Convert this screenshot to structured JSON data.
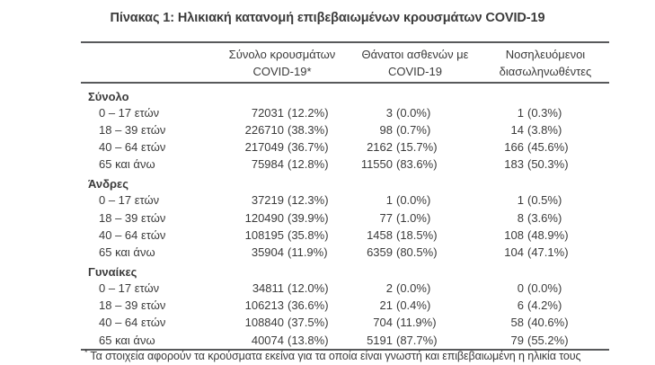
{
  "title": "Πίνακας 1: Ηλικιακή κατανομή επιβεβαιωμένων κρουσμάτων COVID-19",
  "table": {
    "columns": [
      {
        "lines": [
          "Σύνολο κρουσμάτων",
          "COVID-19*"
        ]
      },
      {
        "lines": [
          "Θάνατοι ασθενών με",
          "COVID-19"
        ]
      },
      {
        "lines": [
          "Νοσηλευόμενοι",
          "διασωληνωθέντες"
        ]
      }
    ],
    "sections": [
      {
        "label": "Σύνολο",
        "rows": [
          {
            "age": "0 – 17 ετών",
            "cases": {
              "count": "72031",
              "pct": "(12.2%)"
            },
            "deaths": {
              "count": "3",
              "pct": "(0.0%)"
            },
            "intubated": {
              "count": "1",
              "pct": "(0.3%)"
            }
          },
          {
            "age": "18 – 39 ετών",
            "cases": {
              "count": "226710",
              "pct": "(38.3%)"
            },
            "deaths": {
              "count": "98",
              "pct": "(0.7%)"
            },
            "intubated": {
              "count": "14",
              "pct": "(3.8%)"
            }
          },
          {
            "age": "40 – 64 ετών",
            "cases": {
              "count": "217049",
              "pct": "(36.7%)"
            },
            "deaths": {
              "count": "2162",
              "pct": "(15.7%)"
            },
            "intubated": {
              "count": "166",
              "pct": "(45.6%)"
            }
          },
          {
            "age": "65 και άνω",
            "cases": {
              "count": "75984",
              "pct": "(12.8%)"
            },
            "deaths": {
              "count": "11550",
              "pct": "(83.6%)"
            },
            "intubated": {
              "count": "183",
              "pct": "(50.3%)"
            }
          }
        ]
      },
      {
        "label": "Άνδρες",
        "rows": [
          {
            "age": "0 – 17 ετών",
            "cases": {
              "count": "37219",
              "pct": "(12.3%)"
            },
            "deaths": {
              "count": "1",
              "pct": "(0.0%)"
            },
            "intubated": {
              "count": "1",
              "pct": "(0.5%)"
            }
          },
          {
            "age": "18 – 39 ετών",
            "cases": {
              "count": "120490",
              "pct": "(39.9%)"
            },
            "deaths": {
              "count": "77",
              "pct": "(1.0%)"
            },
            "intubated": {
              "count": "8",
              "pct": "(3.6%)"
            }
          },
          {
            "age": "40 – 64 ετών",
            "cases": {
              "count": "108195",
              "pct": "(35.8%)"
            },
            "deaths": {
              "count": "1458",
              "pct": "(18.5%)"
            },
            "intubated": {
              "count": "108",
              "pct": "(48.9%)"
            }
          },
          {
            "age": "65 και άνω",
            "cases": {
              "count": "35904",
              "pct": "(11.9%)"
            },
            "deaths": {
              "count": "6359",
              "pct": "(80.5%)"
            },
            "intubated": {
              "count": "104",
              "pct": "(47.1%)"
            }
          }
        ]
      },
      {
        "label": "Γυναίκες",
        "rows": [
          {
            "age": "0 – 17 ετών",
            "cases": {
              "count": "34811",
              "pct": "(12.0%)"
            },
            "deaths": {
              "count": "2",
              "pct": "(0.0%)"
            },
            "intubated": {
              "count": "0",
              "pct": "(0.0%)"
            }
          },
          {
            "age": "18 – 39 ετών",
            "cases": {
              "count": "106213",
              "pct": "(36.6%)"
            },
            "deaths": {
              "count": "21",
              "pct": "(0.4%)"
            },
            "intubated": {
              "count": "6",
              "pct": "(4.2%)"
            }
          },
          {
            "age": "40 – 64 ετών",
            "cases": {
              "count": "108840",
              "pct": "(37.5%)"
            },
            "deaths": {
              "count": "704",
              "pct": "(11.9%)"
            },
            "intubated": {
              "count": "58",
              "pct": "(40.6%)"
            }
          },
          {
            "age": "65 και άνω",
            "cases": {
              "count": "40074",
              "pct": "(13.8%)"
            },
            "deaths": {
              "count": "5191",
              "pct": "(87.7%)"
            },
            "intubated": {
              "count": "79",
              "pct": "(55.2%)"
            }
          }
        ]
      }
    ],
    "footnote_marker": "*",
    "footnote": "Τα στοιχεία αφορούν τα κρούσματα εκείνα για τα οποία είναι γνωστή και επιβεβαιωμένη η ηλικία τους"
  },
  "colors": {
    "text": "#3b3b3b",
    "border": "#58595b",
    "background": "#ffffff"
  }
}
